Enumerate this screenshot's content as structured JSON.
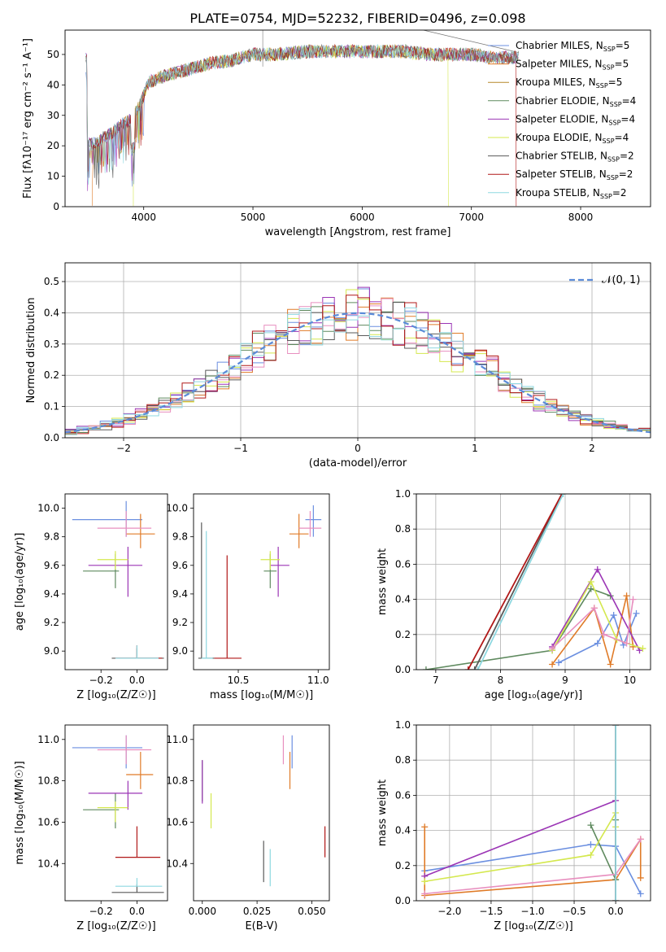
{
  "figure_title": "PLATE=0754, MJD=52232, FIBERID=0496, z=0.098",
  "colors": [
    "#6b8fe0",
    "#e07b28",
    "#b5892a",
    "#5f8a5f",
    "#9b35b5",
    "#d4e84e",
    "#5a5a5a",
    "#b01818",
    "#8ed8e0"
  ],
  "fit_colors": [
    "#6b8fe0",
    "#e07b28",
    "#5f8a5f",
    "#9b35b5",
    "#d4e84e",
    "#e88fbf",
    "#5a5a5a",
    "#b01818",
    "#8ed8e0"
  ],
  "chart_data": [
    {
      "id": "spectrum",
      "type": "line",
      "title": "PLATE=0754, MJD=52232, FIBERID=0496, z=0.098",
      "xlabel": "wavelength [Angstrom, rest frame]",
      "ylabel": "Flux [fλ10⁻¹⁷ erg cm⁻² s⁻¹ A⁻¹]",
      "xlim": [
        3280,
        8640
      ],
      "ylim": [
        0,
        58
      ],
      "xticks": [
        4000,
        5000,
        6000,
        7000,
        8000
      ],
      "yticks": [
        0,
        10,
        20,
        30,
        40,
        50
      ],
      "legend_position": "top-right",
      "series": [
        {
          "name": "Chabrier MILES, N_SSP=5"
        },
        {
          "name": "Salpeter MILES, N_SSP=5"
        },
        {
          "name": "Kroupa MILES, N_SSP=5"
        },
        {
          "name": "Chabrier ELODIE, N_SSP=4"
        },
        {
          "name": "Salpeter ELODIE, N_SSP=4"
        },
        {
          "name": "Kroupa ELODIE, N_SSP=4"
        },
        {
          "name": "Chabrier STELIB, N_SSP=2"
        },
        {
          "name": "Salpeter STELIB, N_SSP=2"
        },
        {
          "name": "Kroupa STELIB, N_SSP=2"
        }
      ],
      "continuum": [
        [
          3480,
          20
        ],
        [
          3600,
          22
        ],
        [
          3700,
          24
        ],
        [
          3800,
          27
        ],
        [
          3900,
          29
        ],
        [
          3960,
          33
        ],
        [
          4050,
          41
        ],
        [
          4200,
          43
        ],
        [
          4400,
          45
        ],
        [
          4600,
          47
        ],
        [
          4800,
          48
        ],
        [
          5000,
          50
        ],
        [
          5200,
          50
        ],
        [
          5500,
          51
        ],
        [
          5800,
          51
        ],
        [
          6000,
          51
        ],
        [
          6200,
          51
        ],
        [
          6400,
          51
        ],
        [
          6600,
          50
        ],
        [
          6800,
          50
        ],
        [
          7000,
          50
        ],
        [
          7200,
          49
        ],
        [
          7400,
          49
        ]
      ],
      "dips": [
        [
          3530,
          2
        ],
        [
          3900,
          12
        ],
        [
          6790,
          0
        ],
        [
          7410,
          0
        ]
      ],
      "spike": [
        [
          5090,
          58
        ],
        [
          6560,
          58
        ]
      ],
      "grid": false
    },
    {
      "id": "residuals",
      "type": "histogram",
      "xlabel": "(data-model)/error",
      "ylabel": "Normed distribution",
      "xlim": [
        -2.5,
        2.5
      ],
      "ylim": [
        0,
        0.56
      ],
      "xticks": [
        -2,
        -1,
        0,
        1,
        2
      ],
      "yticks": [
        0.0,
        0.1,
        0.2,
        0.3,
        0.4,
        0.5
      ],
      "legend": "𝒩(0, 1)",
      "legend_position": "top-right",
      "bin_width": 0.1,
      "grid": true
    },
    {
      "id": "age_vs_Z",
      "type": "errorbar",
      "xlabel": "Z [log₁₀(Z/Z☉)]",
      "ylabel": "age  [log₁₀(age/yr)]",
      "xlim": [
        -0.4,
        0.17
      ],
      "ylim": [
        8.87,
        10.1
      ],
      "xticks": [
        -0.2,
        0.0
      ],
      "yticks": [
        9.0,
        9.2,
        9.4,
        9.6,
        9.8,
        10.0
      ],
      "points": [
        {
          "x": -0.06,
          "y": 9.92,
          "xe": [
            -0.36,
            0.03
          ],
          "ye": [
            9.8,
            10.05
          ]
        },
        {
          "x": 0.02,
          "y": 9.82,
          "xe": [
            -0.06,
            0.1
          ],
          "ye": [
            9.72,
            9.96
          ]
        },
        {
          "x": -0.12,
          "y": 9.56,
          "xe": [
            -0.3,
            -0.1
          ],
          "ye": [
            9.44,
            9.68
          ]
        },
        {
          "x": -0.05,
          "y": 9.6,
          "xe": [
            -0.27,
            0.03
          ],
          "ye": [
            9.38,
            9.73
          ]
        },
        {
          "x": -0.12,
          "y": 9.64,
          "xe": [
            -0.22,
            -0.05
          ],
          "ye": [
            9.57,
            9.7
          ]
        },
        {
          "x": -0.06,
          "y": 9.86,
          "xe": [
            -0.22,
            0.08
          ],
          "ye": [
            9.8,
            9.98
          ]
        },
        {
          "x": 0.0,
          "y": 8.95,
          "xe": [
            -0.14,
            0.15
          ],
          "ye": [
            8.95,
            9.02
          ]
        },
        {
          "x": 0.0,
          "y": 8.95,
          "xe": [
            -0.12,
            0.14
          ],
          "ye": [
            8.95,
            9.04
          ]
        },
        {
          "x": 0.0,
          "y": 8.95,
          "xe": [
            -0.12,
            0.12
          ],
          "ye": [
            8.95,
            9.04
          ]
        }
      ]
    },
    {
      "id": "age_vs_mass",
      "type": "errorbar",
      "xlabel": "mass [log₁₀(M/M☉)]",
      "ylabel": "",
      "xlim": [
        10.22,
        11.07
      ],
      "ylim": [
        8.87,
        10.1
      ],
      "xticks": [
        10.5,
        11.0
      ],
      "yticks": [
        9.0,
        9.2,
        9.4,
        9.6,
        9.8,
        10.0
      ],
      "points": [
        {
          "x": 10.97,
          "y": 9.92,
          "xe": [
            10.92,
            11.02
          ],
          "ye": [
            9.8,
            10.02
          ]
        },
        {
          "x": 10.88,
          "y": 9.82,
          "xe": [
            10.82,
            10.94
          ],
          "ye": [
            9.72,
            9.96
          ]
        },
        {
          "x": 10.7,
          "y": 9.56,
          "xe": [
            10.66,
            10.74
          ],
          "ye": [
            9.44,
            9.68
          ]
        },
        {
          "x": 10.75,
          "y": 9.6,
          "xe": [
            10.7,
            10.82
          ],
          "ye": [
            9.38,
            9.73
          ]
        },
        {
          "x": 10.7,
          "y": 9.64,
          "xe": [
            10.64,
            10.76
          ],
          "ye": [
            9.57,
            9.7
          ]
        },
        {
          "x": 10.95,
          "y": 9.86,
          "xe": [
            10.88,
            11.02
          ],
          "ye": [
            9.8,
            9.98
          ]
        },
        {
          "x": 10.27,
          "y": 8.95,
          "xe": [
            10.25,
            10.35
          ],
          "ye": [
            8.95,
            9.9
          ]
        },
        {
          "x": 10.43,
          "y": 8.95,
          "xe": [
            10.35,
            10.52
          ],
          "ye": [
            8.95,
            9.67
          ]
        },
        {
          "x": 10.3,
          "y": 8.95,
          "xe": [
            10.27,
            10.34
          ],
          "ye": [
            8.95,
            9.84
          ]
        }
      ]
    },
    {
      "id": "weight_vs_age",
      "type": "line",
      "xlabel": "age  [log₁₀(age/yr)]",
      "ylabel": "mass weight",
      "xlim": [
        6.7,
        10.32
      ],
      "ylim": [
        0,
        1.0
      ],
      "xticks": [
        7,
        8,
        9,
        10
      ],
      "yticks": [
        0.0,
        0.2,
        0.4,
        0.6,
        0.8,
        1.0
      ],
      "grid": true,
      "series": [
        {
          "x": [
            8.9,
            9.5,
            9.75,
            9.9,
            10.1
          ],
          "y": [
            0.04,
            0.15,
            0.31,
            0.14,
            0.32
          ]
        },
        {
          "x": [
            8.8,
            9.45,
            9.7,
            9.95,
            10.05
          ],
          "y": [
            0.03,
            0.35,
            0.03,
            0.42,
            0.13
          ]
        },
        {
          "x": [
            6.85,
            8.8,
            9.4,
            9.7
          ],
          "y": [
            0.0,
            0.11,
            0.46,
            0.42
          ]
        },
        {
          "x": [
            8.8,
            9.5,
            10.15
          ],
          "y": [
            0.13,
            0.57,
            0.11
          ]
        },
        {
          "x": [
            8.8,
            9.4,
            9.8,
            10.2
          ],
          "y": [
            0.11,
            0.5,
            0.17,
            0.12
          ]
        },
        {
          "x": [
            8.8,
            9.45,
            9.6,
            9.95,
            10.05
          ],
          "y": [
            0.12,
            0.35,
            0.2,
            0.15,
            0.4
          ]
        },
        {
          "x": [
            7.6,
            8.95
          ],
          "y": [
            0.0,
            1.0
          ]
        },
        {
          "x": [
            7.5,
            8.95
          ],
          "y": [
            0.0,
            1.0
          ]
        },
        {
          "x": [
            7.65,
            8.97
          ],
          "y": [
            0.0,
            1.0
          ]
        }
      ]
    },
    {
      "id": "mass_vs_Z",
      "type": "errorbar",
      "xlabel": "Z [log₁₀(Z/Z☉)]",
      "ylabel": "mass [log₁₀(M/M☉)]",
      "xlim": [
        -0.4,
        0.17
      ],
      "ylim": [
        10.22,
        11.07
      ],
      "xticks": [
        -0.2,
        0.0
      ],
      "yticks": [
        10.4,
        10.6,
        10.8,
        11.0
      ],
      "points": [
        {
          "x": -0.06,
          "y": 10.96,
          "xe": [
            -0.36,
            0.03
          ],
          "ye": [
            10.86,
            11.02
          ]
        },
        {
          "x": 0.02,
          "y": 10.83,
          "xe": [
            -0.06,
            0.09
          ],
          "ye": [
            10.76,
            10.94
          ]
        },
        {
          "x": -0.12,
          "y": 10.66,
          "xe": [
            -0.3,
            -0.1
          ],
          "ye": [
            10.57,
            10.74
          ]
        },
        {
          "x": -0.05,
          "y": 10.74,
          "xe": [
            -0.27,
            0.03
          ],
          "ye": [
            10.66,
            10.8
          ]
        },
        {
          "x": -0.12,
          "y": 10.67,
          "xe": [
            -0.22,
            -0.05
          ],
          "ye": [
            10.6,
            10.7
          ]
        },
        {
          "x": -0.06,
          "y": 10.95,
          "xe": [
            -0.22,
            0.08
          ],
          "ye": [
            10.88,
            11.02
          ]
        },
        {
          "x": 0.0,
          "y": 10.26,
          "xe": [
            -0.14,
            0.15
          ],
          "ye": [
            10.26,
            10.3
          ]
        },
        {
          "x": 0.0,
          "y": 10.43,
          "xe": [
            -0.12,
            0.13
          ],
          "ye": [
            10.43,
            10.58
          ]
        },
        {
          "x": 0.0,
          "y": 10.29,
          "xe": [
            -0.12,
            0.14
          ],
          "ye": [
            10.29,
            10.33
          ]
        }
      ]
    },
    {
      "id": "mass_vs_EBV",
      "type": "errorbar",
      "xlabel": "E(B-V)",
      "ylabel": "",
      "xlim": [
        -0.004,
        0.058
      ],
      "ylim": [
        10.22,
        11.07
      ],
      "xticks": [
        0.0,
        0.025,
        0.05
      ],
      "yticks": [
        10.4,
        10.6,
        10.8,
        11.0
      ],
      "points": [
        {
          "x": 0.041,
          "y": 10.96,
          "xe": [
            0.041,
            0.041
          ],
          "ye": [
            10.86,
            11.02
          ]
        },
        {
          "x": 0.04,
          "y": 10.83,
          "xe": [
            0.04,
            0.04
          ],
          "ye": [
            10.76,
            10.94
          ]
        },
        {
          "x": 0.0,
          "y": 10.78,
          "xe": [
            0.0,
            0.0
          ],
          "ye": [
            10.7,
            10.9
          ]
        },
        {
          "x": 0.0,
          "y": 10.79,
          "xe": [
            0.0,
            0.0
          ],
          "ye": [
            10.69,
            10.9
          ]
        },
        {
          "x": 0.004,
          "y": 10.66,
          "xe": [
            0.004,
            0.004
          ],
          "ye": [
            10.57,
            10.74
          ]
        },
        {
          "x": 0.037,
          "y": 10.96,
          "xe": [
            0.037,
            0.037
          ],
          "ye": [
            10.88,
            11.02
          ]
        },
        {
          "x": 0.028,
          "y": 10.44,
          "xe": [
            0.028,
            0.028
          ],
          "ye": [
            10.31,
            10.51
          ]
        },
        {
          "x": 0.056,
          "y": 10.5,
          "xe": [
            0.056,
            0.056
          ],
          "ye": [
            10.43,
            10.58
          ]
        },
        {
          "x": 0.031,
          "y": 10.38,
          "xe": [
            0.031,
            0.031
          ],
          "ye": [
            10.29,
            10.47
          ]
        }
      ]
    },
    {
      "id": "weight_vs_Z",
      "type": "line",
      "xlabel": "Z [log₁₀(Z/Z☉)]",
      "ylabel": "mass weight",
      "xlim": [
        -2.4,
        0.42
      ],
      "ylim": [
        0,
        1.0
      ],
      "xticks": [
        -2.0,
        -1.5,
        -1.0,
        -0.5,
        0.0
      ],
      "yticks": [
        0.0,
        0.2,
        0.4,
        0.6,
        0.8,
        1.0
      ],
      "grid": true,
      "series": [
        {
          "x": [
            -2.3,
            -0.3,
            0.0,
            0.3
          ],
          "y": [
            0.17,
            0.32,
            0.31,
            0.04
          ]
        },
        {
          "x": [
            -2.3,
            -2.3,
            0.0,
            0.3,
            0.3
          ],
          "y": [
            0.42,
            0.03,
            0.12,
            0.35,
            0.13
          ]
        },
        {
          "x": [
            -0.3,
            0.0,
            0.0
          ],
          "y": [
            0.43,
            0.12,
            0.46
          ]
        },
        {
          "x": [
            -2.3,
            0.0
          ],
          "y": [
            0.14,
            0.57
          ]
        },
        {
          "x": [
            -2.3,
            -0.3,
            0.0,
            0.0
          ],
          "y": [
            0.11,
            0.26,
            0.5,
            0.42
          ]
        },
        {
          "x": [
            -2.3,
            0.0,
            0.3
          ],
          "y": [
            0.04,
            0.15,
            0.35
          ]
        },
        {
          "x": [
            0.0,
            0.0
          ],
          "y": [
            0.0,
            1.0
          ]
        },
        {
          "x": [
            0.0,
            0.0
          ],
          "y": [
            0.0,
            1.0
          ]
        },
        {
          "x": [
            0.0,
            0.0
          ],
          "y": [
            0.0,
            1.0
          ]
        }
      ]
    }
  ]
}
